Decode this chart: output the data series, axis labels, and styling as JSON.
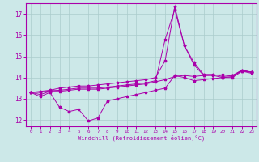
{
  "title": "",
  "xlabel": "Windchill (Refroidissement éolien,°C)",
  "bg_color": "#cce8e8",
  "line_color": "#aa00aa",
  "grid_color": "#aacccc",
  "x_ticks": [
    0,
    1,
    2,
    3,
    4,
    5,
    6,
    7,
    8,
    9,
    10,
    11,
    12,
    13,
    14,
    15,
    16,
    17,
    18,
    19,
    20,
    21,
    22,
    23
  ],
  "y_ticks": [
    12,
    13,
    14,
    15,
    16,
    17
  ],
  "xlim": [
    -0.5,
    23.5
  ],
  "ylim": [
    11.7,
    17.5
  ],
  "series": {
    "line1_x": [
      0,
      1,
      2,
      3,
      4,
      5,
      6,
      7,
      8,
      9,
      10,
      11,
      12,
      13,
      14,
      15,
      16,
      17,
      18,
      19,
      20,
      21,
      22,
      23
    ],
    "line1_y": [
      13.3,
      13.1,
      13.3,
      12.6,
      12.4,
      12.5,
      11.95,
      12.1,
      12.9,
      13.0,
      13.1,
      13.2,
      13.3,
      13.4,
      13.5,
      14.1,
      14.0,
      13.85,
      13.9,
      13.95,
      14.0,
      14.0,
      14.3,
      14.2
    ],
    "line2_x": [
      0,
      1,
      2,
      3,
      4,
      5,
      6,
      7,
      8,
      9,
      10,
      11,
      12,
      13,
      14,
      15,
      16,
      17,
      18,
      19,
      20,
      21,
      22,
      23
    ],
    "line2_y": [
      13.3,
      13.2,
      13.35,
      13.35,
      13.4,
      13.45,
      13.45,
      13.45,
      13.5,
      13.55,
      13.6,
      13.65,
      13.7,
      13.8,
      13.9,
      14.05,
      14.1,
      14.05,
      14.1,
      14.12,
      14.13,
      14.1,
      14.3,
      14.25
    ],
    "line3_x": [
      0,
      1,
      2,
      3,
      4,
      5,
      6,
      7,
      8,
      9,
      10,
      11,
      12,
      13,
      14,
      15,
      16,
      17,
      18,
      19,
      20,
      21,
      22,
      23
    ],
    "line3_y": [
      13.3,
      13.3,
      13.38,
      13.4,
      13.45,
      13.5,
      13.5,
      13.5,
      13.55,
      13.6,
      13.65,
      13.7,
      13.75,
      13.85,
      15.8,
      17.2,
      15.5,
      14.6,
      14.1,
      14.1,
      14.0,
      14.05,
      14.35,
      14.25
    ],
    "line4_x": [
      0,
      1,
      2,
      3,
      4,
      5,
      6,
      7,
      8,
      9,
      10,
      11,
      12,
      13,
      14,
      15,
      16,
      17,
      18,
      19,
      20,
      21,
      22,
      23
    ],
    "line4_y": [
      13.3,
      13.35,
      13.4,
      13.5,
      13.55,
      13.6,
      13.6,
      13.65,
      13.7,
      13.75,
      13.8,
      13.85,
      13.9,
      14.0,
      14.8,
      17.35,
      15.5,
      14.7,
      14.15,
      14.15,
      14.05,
      14.1,
      14.35,
      14.25
    ]
  }
}
